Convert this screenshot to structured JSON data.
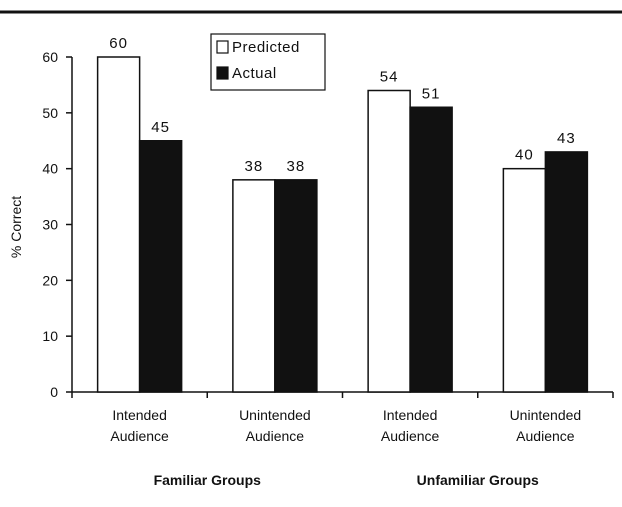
{
  "chart_data": {
    "type": "bar",
    "title": "",
    "xlabel": "",
    "ylabel": "% Correct",
    "ylim": [
      0,
      60
    ],
    "yticks": [
      0,
      10,
      20,
      30,
      40,
      50,
      60
    ],
    "grid": false,
    "legend_position": "top-center",
    "categories": [
      [
        "Intended",
        "Audience"
      ],
      [
        "Unintended",
        "Audience"
      ],
      [
        "Intended",
        "Audience"
      ],
      [
        "Unintended",
        "Audience"
      ]
    ],
    "groups": [
      {
        "label": "Familiar Groups",
        "categories": [
          0,
          1
        ]
      },
      {
        "label": "Unfamiliar Groups",
        "categories": [
          2,
          3
        ]
      }
    ],
    "series": [
      {
        "name": "Predicted",
        "color": "#ffffff",
        "values": [
          60,
          38,
          54,
          40
        ]
      },
      {
        "name": "Actual",
        "color": "#111111",
        "values": [
          45,
          38,
          51,
          43
        ]
      }
    ]
  }
}
